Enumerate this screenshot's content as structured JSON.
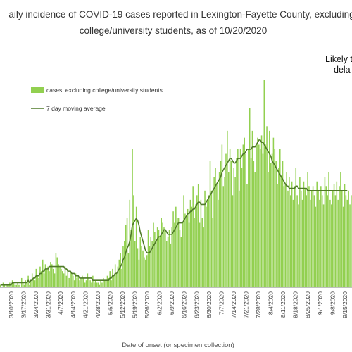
{
  "chart_data": {
    "type": "bar",
    "title_lines": [
      "aily incidence of COVID-19 cases reported in Lexington-Fayette County, excluding",
      "college/university students, as of 10/20/2020"
    ],
    "annotation_lines": [
      "Likely to",
      "dela"
    ],
    "xlabel": "Date of onset (or specimen collection)",
    "ylabel": "",
    "ylim": [
      0,
      90
    ],
    "grid": false,
    "legend_position": "top-left",
    "colors": {
      "bars": "#92d050",
      "line": "#4f7a28"
    },
    "x_tick_labels": [
      "3/10/2020",
      "3/17/2020",
      "3/24/2020",
      "3/31/2020",
      "4/7/2020",
      "4/14/2020",
      "4/21/2020",
      "4/28/2020",
      "5/5/2020",
      "5/12/2020",
      "5/19/2020",
      "5/26/2020",
      "6/2/2020",
      "6/9/2020",
      "6/16/2020",
      "6/23/2020",
      "6/30/2020",
      "7/7/2020",
      "7/14/2020",
      "7/21/2020",
      "7/28/2020",
      "8/4/2020",
      "8/11/2020",
      "8/18/2020",
      "8/25/2020",
      "9/1/2020",
      "9/8/2020",
      "9/15/2020"
    ],
    "series": [
      {
        "name": "cases, excluding college/university students",
        "type": "bar",
        "values": [
          1,
          0,
          2,
          1,
          0,
          1,
          1,
          2,
          1,
          3,
          2,
          1,
          1,
          2,
          1,
          0,
          4,
          2,
          1,
          3,
          2,
          5,
          1,
          3,
          6,
          4,
          3,
          8,
          5,
          4,
          9,
          7,
          12,
          6,
          10,
          8,
          9,
          7,
          11,
          10,
          8,
          6,
          15,
          13,
          10,
          9,
          8,
          7,
          6,
          9,
          5,
          8,
          4,
          7,
          6,
          5,
          3,
          6,
          4,
          5,
          3,
          4,
          5,
          4,
          2,
          3,
          6,
          4,
          3,
          2,
          5,
          2,
          3,
          2,
          2,
          1,
          3,
          2,
          4,
          3,
          3,
          5,
          4,
          7,
          3,
          8,
          5,
          10,
          6,
          9,
          12,
          15,
          8,
          18,
          20,
          27,
          30,
          15,
          38,
          25,
          60,
          40,
          20,
          35,
          17,
          12,
          22,
          18,
          16,
          13,
          12,
          14,
          25,
          18,
          22,
          20,
          28,
          24,
          20,
          26,
          25,
          22,
          30,
          28,
          26,
          24,
          20,
          22,
          25,
          19,
          26,
          33,
          28,
          35,
          30,
          30,
          25,
          22,
          28,
          40,
          32,
          30,
          34,
          28,
          38,
          35,
          44,
          30,
          36,
          40,
          45,
          28,
          38,
          30,
          26,
          42,
          35,
          38,
          40,
          55,
          42,
          30,
          48,
          52,
          45,
          38,
          50,
          55,
          62,
          44,
          48,
          58,
          68,
          50,
          60,
          55,
          40,
          52,
          48,
          56,
          60,
          42,
          60,
          52,
          62,
          65,
          58,
          45,
          60,
          78,
          56,
          68,
          55,
          50,
          62,
          65,
          62,
          60,
          66,
          58,
          90,
          62,
          70,
          50,
          68,
          54,
          58,
          65,
          60,
          55,
          45,
          52,
          60,
          48,
          55,
          44,
          45,
          50,
          42,
          48,
          40,
          46,
          38,
          44,
          52,
          40,
          36,
          48,
          42,
          38,
          46,
          43,
          40,
          50,
          44,
          38,
          42,
          44,
          40,
          35,
          46,
          42,
          38,
          44,
          40,
          36,
          48,
          44,
          40,
          50,
          38,
          36,
          42,
          45,
          40,
          46,
          38,
          44,
          50,
          42,
          35,
          45,
          40,
          38,
          42,
          36,
          40
        ]
      },
      {
        "name": "7 day moving average",
        "type": "line",
        "values": [
          1,
          1,
          1,
          1,
          1,
          1,
          1,
          1,
          1,
          2,
          2,
          2,
          2,
          2,
          2,
          2,
          2,
          2,
          2,
          2,
          2,
          3,
          2,
          3,
          3,
          4,
          4,
          5,
          5,
          5,
          6,
          6,
          7,
          7,
          8,
          8,
          8,
          9,
          9,
          9,
          9,
          9,
          9,
          9,
          9,
          9,
          9,
          9,
          9,
          8,
          8,
          7,
          7,
          7,
          6,
          6,
          6,
          5,
          5,
          5,
          4,
          4,
          4,
          4,
          4,
          4,
          4,
          4,
          4,
          4,
          3,
          3,
          3,
          3,
          3,
          3,
          3,
          3,
          3,
          3,
          3,
          3,
          3,
          4,
          4,
          5,
          5,
          6,
          6,
          7,
          8,
          9,
          10,
          12,
          13,
          15,
          17,
          18,
          20,
          23,
          27,
          28,
          29,
          30,
          29,
          27,
          24,
          22,
          20,
          18,
          16,
          15,
          15,
          15,
          16,
          17,
          18,
          19,
          20,
          21,
          22,
          22,
          23,
          24,
          25,
          25,
          24,
          23,
          23,
          23,
          23,
          24,
          25,
          26,
          27,
          28,
          28,
          28,
          28,
          29,
          30,
          31,
          32,
          32,
          33,
          33,
          34,
          34,
          35,
          36,
          37,
          37,
          36,
          36,
          36,
          36,
          37,
          38,
          39,
          40,
          41,
          42,
          43,
          44,
          45,
          46,
          47,
          48,
          50,
          51,
          52,
          53,
          54,
          55,
          56,
          56,
          55,
          54,
          54,
          55,
          56,
          56,
          56,
          57,
          58,
          58,
          59,
          60,
          60,
          60,
          60,
          61,
          61,
          61,
          62,
          63,
          64,
          64,
          63,
          63,
          62,
          61,
          60,
          59,
          58,
          57,
          55,
          54,
          53,
          52,
          51,
          50,
          49,
          48,
          47,
          46,
          45,
          44,
          44,
          43,
          43,
          43,
          43,
          43,
          44,
          44,
          43,
          43,
          43,
          43,
          43,
          43,
          43,
          42,
          42,
          42,
          42,
          42,
          42,
          42,
          42,
          42,
          42,
          42,
          42,
          42,
          42,
          42,
          42,
          42,
          42,
          42,
          42,
          42,
          42,
          42,
          42,
          42,
          42,
          42,
          42,
          42,
          42,
          42
        ]
      }
    ]
  }
}
